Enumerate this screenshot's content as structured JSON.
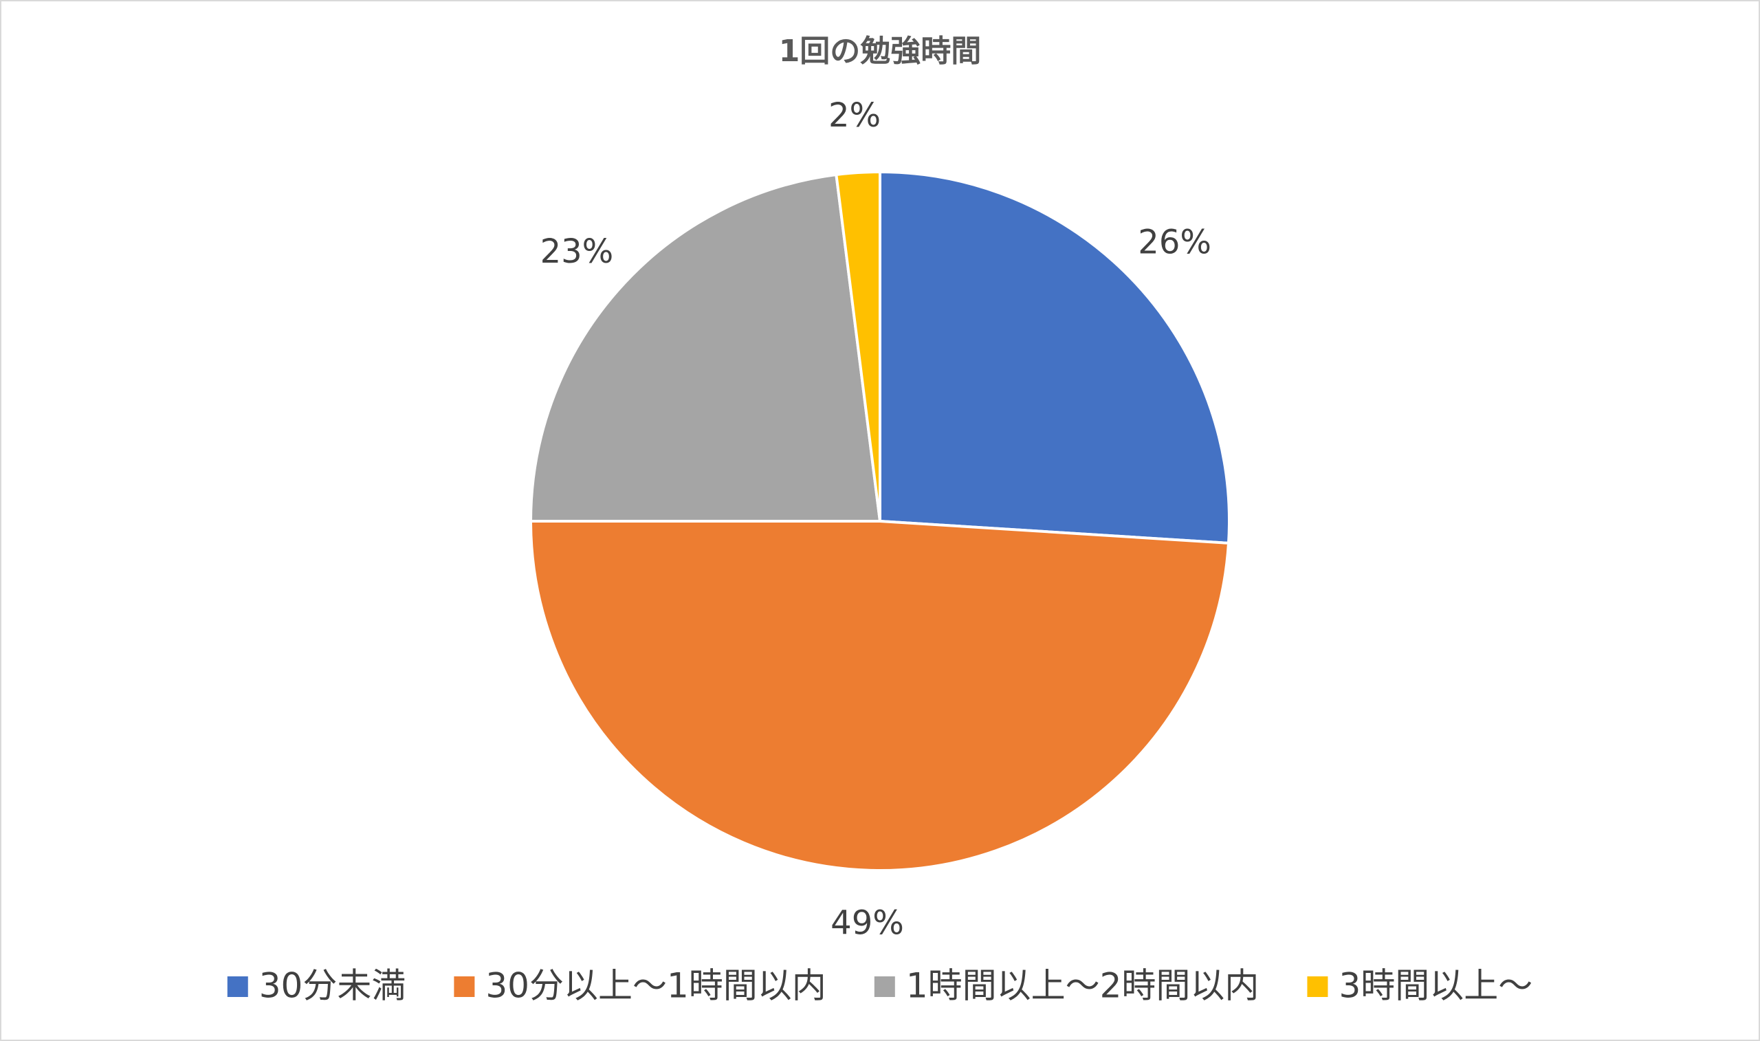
{
  "chart_data": {
    "type": "pie",
    "title": "1回の勉強時間",
    "categories": [
      "30分未満",
      "30分以上～1時間以内",
      "1時間以上～2時間以内",
      "3時間以上～"
    ],
    "values": [
      26,
      49,
      23,
      2
    ],
    "value_labels": [
      "26%",
      "49%",
      "23%",
      "2%"
    ],
    "colors": [
      "#4472c4",
      "#ed7d31",
      "#a5a5a5",
      "#ffc000"
    ],
    "legend": "bottom"
  }
}
